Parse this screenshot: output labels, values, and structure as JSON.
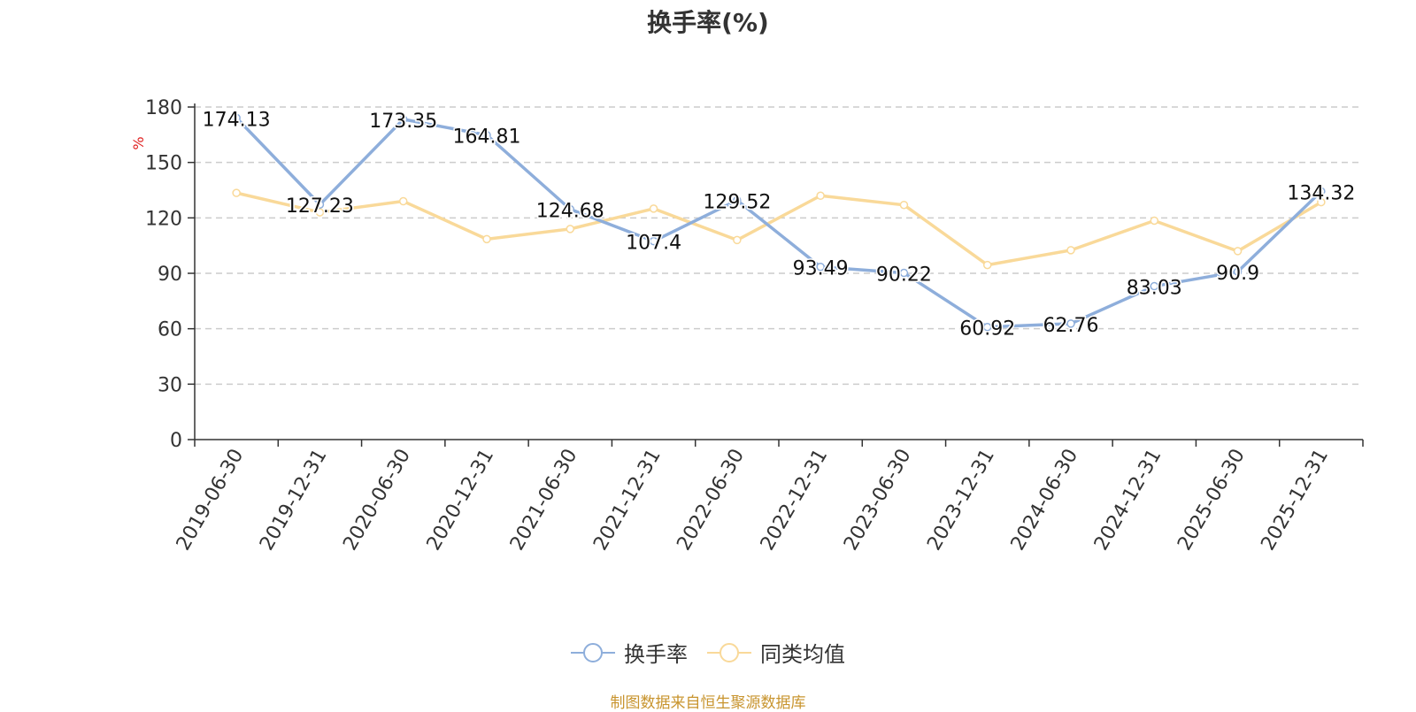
{
  "chart_data": {
    "type": "line",
    "title": "换手率(%)",
    "ylabel": "%",
    "ylim": [
      0,
      180
    ],
    "yticks": [
      0,
      30,
      60,
      90,
      120,
      150,
      180
    ],
    "grid": true,
    "legend_position": "bottom-center",
    "categories": [
      "2019-06-30",
      "2019-12-31",
      "2020-06-30",
      "2020-12-31",
      "2021-06-30",
      "2021-12-31",
      "2022-06-30",
      "2022-12-31",
      "2023-06-30",
      "2023-12-31",
      "2024-06-30",
      "2024-12-31",
      "2025-06-30",
      "2025-12-31"
    ],
    "series": [
      {
        "name": "换手率",
        "color": "#8eaedb",
        "values": [
          174.13,
          127.23,
          173.35,
          164.81,
          124.68,
          107.4,
          129.52,
          93.49,
          90.22,
          60.92,
          62.76,
          83.03,
          90.9,
          134.32
        ],
        "labels": [
          "174.13",
          "127.23",
          "173.35",
          "164.81",
          "124.68",
          "107.4",
          "129.52",
          "93.49",
          "90.22",
          "60.92",
          "62.76",
          "83.03",
          "90.9",
          "134.32"
        ]
      },
      {
        "name": "同类均值",
        "color": "#f9d999",
        "values": [
          133.5,
          123.0,
          129.0,
          108.5,
          114.0,
          125.0,
          108.0,
          132.0,
          127.0,
          94.5,
          102.5,
          118.5,
          102.0,
          128.5
        ]
      }
    ]
  },
  "source": {
    "text": "制图数据来自恒生聚源数据库",
    "color": "#c8942e"
  },
  "colors": {
    "axis": "#333333",
    "grid": "#cccccc",
    "ylabel": "#e02020"
  }
}
